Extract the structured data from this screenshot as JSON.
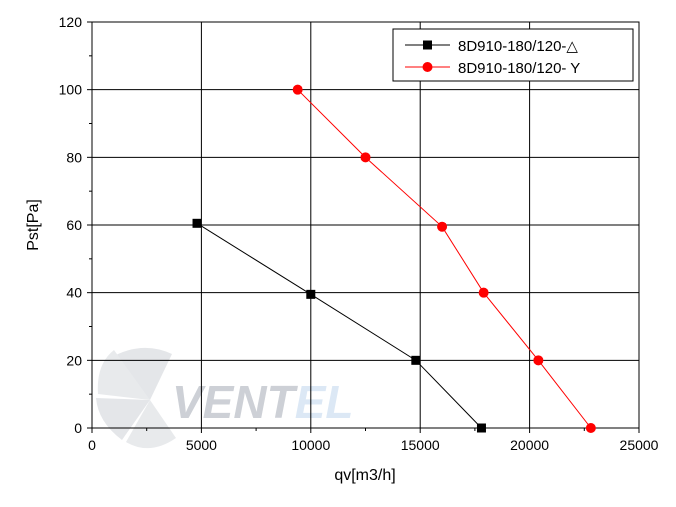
{
  "chart_data": {
    "type": "line",
    "xlabel": "qv[m3/h]",
    "ylabel": "Pst[Pa]",
    "xlim": [
      0,
      25000
    ],
    "ylim": [
      0,
      120
    ],
    "xticks": [
      0,
      5000,
      10000,
      15000,
      20000,
      25000
    ],
    "yticks": [
      0,
      20,
      40,
      60,
      80,
      100,
      120
    ],
    "grid": true,
    "legend_position": "top-right",
    "series": [
      {
        "name": "8D910-180/120-△",
        "color": "#000000",
        "marker": "square",
        "x": [
          4800,
          10000,
          14800,
          17800
        ],
        "y": [
          60.5,
          39.5,
          20,
          0
        ]
      },
      {
        "name": "8D910-180/120- Y",
        "color": "#ff0000",
        "marker": "circle",
        "x": [
          9400,
          12500,
          16000,
          17900,
          20400,
          22800
        ],
        "y": [
          100,
          80,
          59.5,
          40,
          20,
          0
        ]
      }
    ]
  },
  "watermark": {
    "text_dark": "VENT",
    "text_light": "EL",
    "color_dark": "#c8ccd2",
    "color_light": "#d9e6f4"
  }
}
